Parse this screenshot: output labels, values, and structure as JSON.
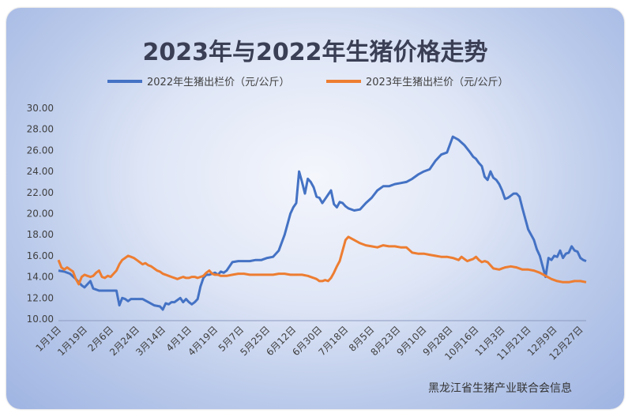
{
  "chart_data": {
    "type": "line",
    "title": "2023年与2022年生猪价格走势",
    "source": "黑龙江省生猪产业联合会信息",
    "ylim": [
      10,
      30
    ],
    "yticks": [
      "10.00",
      "12.00",
      "14.00",
      "16.00",
      "18.00",
      "20.00",
      "22.00",
      "24.00",
      "26.00",
      "28.00",
      "30.00"
    ],
    "legend_position": "top",
    "grid": false,
    "x_labels": [
      "1月1日",
      "1月19日",
      "2月6日",
      "2月24日",
      "3月14日",
      "4月1日",
      "4月19日",
      "5月7日",
      "5月25日",
      "6月12日",
      "6月30日",
      "7月18日",
      "8月5日",
      "8月23日",
      "9月10日",
      "9月28日",
      "10月16日",
      "11月3日",
      "11月21日",
      "12月9日",
      "12月27日"
    ],
    "series": [
      {
        "name": "2022年生猪出栏价（元/公斤）",
        "color": "#4472c4",
        "x": [
          0,
          4,
          8,
          12,
          16,
          18,
          20,
          22,
          24,
          28,
          32,
          36,
          40,
          42,
          44,
          46,
          48,
          50,
          54,
          58,
          62,
          66,
          70,
          72,
          74,
          76,
          78,
          80,
          84,
          86,
          88,
          90,
          92,
          94,
          96,
          98,
          100,
          102,
          104,
          106,
          108,
          110,
          112,
          114,
          116,
          118,
          120,
          124,
          128,
          132,
          136,
          140,
          144,
          148,
          152,
          156,
          160,
          162,
          164,
          166,
          168,
          170,
          172,
          174,
          176,
          178,
          180,
          182,
          184,
          186,
          188,
          190,
          192,
          194,
          196,
          198,
          200,
          204,
          208,
          212,
          216,
          220,
          224,
          228,
          232,
          236,
          240,
          244,
          248,
          252,
          256,
          260,
          264,
          268,
          272,
          276,
          280,
          284,
          286,
          288,
          290,
          292,
          294,
          296,
          298,
          300,
          302,
          304,
          306,
          308,
          310,
          312,
          314,
          316,
          318,
          320,
          324,
          328,
          330,
          332,
          334,
          336,
          338,
          340,
          342,
          344,
          346,
          348,
          350,
          352,
          354,
          356,
          358,
          360,
          362,
          364
        ],
        "values": [
          14.6,
          14.5,
          14.3,
          13.8,
          13.2,
          13.0,
          13.3,
          13.6,
          12.9,
          12.7,
          12.7,
          12.7,
          12.7,
          11.3,
          12.0,
          11.9,
          11.7,
          11.9,
          11.9,
          11.9,
          11.6,
          11.3,
          11.2,
          10.9,
          11.5,
          11.4,
          11.6,
          11.6,
          12.0,
          11.6,
          11.9,
          11.6,
          11.4,
          11.6,
          11.9,
          13.1,
          13.9,
          14.2,
          14.2,
          14.3,
          14.4,
          14.2,
          14.5,
          14.4,
          14.6,
          15.0,
          15.4,
          15.5,
          15.5,
          15.5,
          15.6,
          15.6,
          15.8,
          15.9,
          16.5,
          18.0,
          20.0,
          20.6,
          21.0,
          24.0,
          23.0,
          21.9,
          23.3,
          23.0,
          22.5,
          21.6,
          21.5,
          21.0,
          21.4,
          21.8,
          22.2,
          20.9,
          20.6,
          21.1,
          21.0,
          20.7,
          20.5,
          20.3,
          20.4,
          21.0,
          21.5,
          22.2,
          22.6,
          22.6,
          22.8,
          22.9,
          23.0,
          23.3,
          23.7,
          24.0,
          24.2,
          25.0,
          25.6,
          25.8,
          27.3,
          27.0,
          26.5,
          25.8,
          25.4,
          25.2,
          24.8,
          24.5,
          23.5,
          23.2,
          24.0,
          23.4,
          23.2,
          22.8,
          22.2,
          21.4,
          21.5,
          21.7,
          21.9,
          21.9,
          21.6,
          20.5,
          18.5,
          17.5,
          16.6,
          16.0,
          15.0,
          14.0,
          15.8,
          15.6,
          16.0,
          15.9,
          16.5,
          15.8,
          16.2,
          16.3,
          16.9,
          16.5,
          16.4,
          15.8,
          15.6,
          15.5
        ],
        "ylabel": ""
      },
      {
        "name": "2023年生猪出栏价（元/公斤）",
        "color": "#ed7d31",
        "x": [
          0,
          2,
          4,
          6,
          8,
          10,
          12,
          14,
          16,
          18,
          20,
          22,
          24,
          26,
          28,
          30,
          32,
          34,
          36,
          38,
          40,
          42,
          44,
          46,
          48,
          50,
          52,
          54,
          56,
          58,
          60,
          62,
          64,
          66,
          68,
          70,
          72,
          74,
          76,
          78,
          80,
          82,
          84,
          86,
          88,
          90,
          92,
          94,
          96,
          98,
          100,
          102,
          104,
          106,
          108,
          110,
          112,
          116,
          120,
          124,
          128,
          132,
          136,
          140,
          144,
          148,
          152,
          156,
          160,
          164,
          168,
          172,
          176,
          178,
          180,
          182,
          184,
          186,
          188,
          190,
          192,
          194,
          196,
          198,
          200,
          204,
          208,
          212,
          216,
          220,
          224,
          228,
          232,
          236,
          240,
          244,
          248,
          252,
          256,
          260,
          264,
          268,
          272,
          276,
          278,
          280,
          282,
          284,
          286,
          288,
          290,
          292,
          294,
          296,
          300,
          304,
          308,
          312,
          316,
          320,
          324,
          328,
          332,
          336,
          340,
          344,
          348,
          352,
          356,
          360,
          364
        ],
        "values": [
          15.6,
          14.9,
          14.7,
          14.9,
          14.7,
          14.5,
          13.8,
          13.3,
          14.0,
          14.2,
          14.1,
          14.0,
          14.1,
          14.4,
          14.6,
          14.0,
          13.9,
          14.1,
          14.0,
          14.3,
          14.6,
          15.2,
          15.6,
          15.8,
          16.0,
          15.9,
          15.8,
          15.6,
          15.4,
          15.2,
          15.3,
          15.1,
          15.0,
          14.8,
          14.6,
          14.5,
          14.3,
          14.2,
          14.1,
          14.0,
          13.9,
          13.8,
          13.9,
          14.0,
          13.9,
          13.9,
          14.0,
          14.0,
          13.9,
          14.0,
          14.1,
          14.4,
          14.6,
          14.3,
          14.2,
          14.2,
          14.1,
          14.1,
          14.2,
          14.3,
          14.3,
          14.2,
          14.2,
          14.2,
          14.2,
          14.2,
          14.3,
          14.3,
          14.2,
          14.2,
          14.2,
          14.1,
          13.9,
          13.8,
          13.6,
          13.6,
          13.7,
          13.6,
          13.9,
          14.4,
          15.0,
          15.5,
          16.5,
          17.5,
          17.8,
          17.5,
          17.2,
          17.0,
          16.9,
          16.8,
          17.0,
          16.9,
          16.9,
          16.8,
          16.8,
          16.3,
          16.2,
          16.2,
          16.1,
          16.0,
          15.9,
          15.9,
          15.8,
          15.6,
          15.9,
          15.7,
          15.5,
          15.6,
          15.7,
          15.9,
          15.6,
          15.4,
          15.5,
          15.4,
          14.8,
          14.7,
          14.9,
          15.0,
          14.9,
          14.7,
          14.7,
          14.6,
          14.4,
          14.1,
          13.8,
          13.6,
          13.5,
          13.5,
          13.6,
          13.6,
          13.5
        ],
        "ylabel": ""
      }
    ],
    "xlabel": "",
    "ylabel": ""
  }
}
